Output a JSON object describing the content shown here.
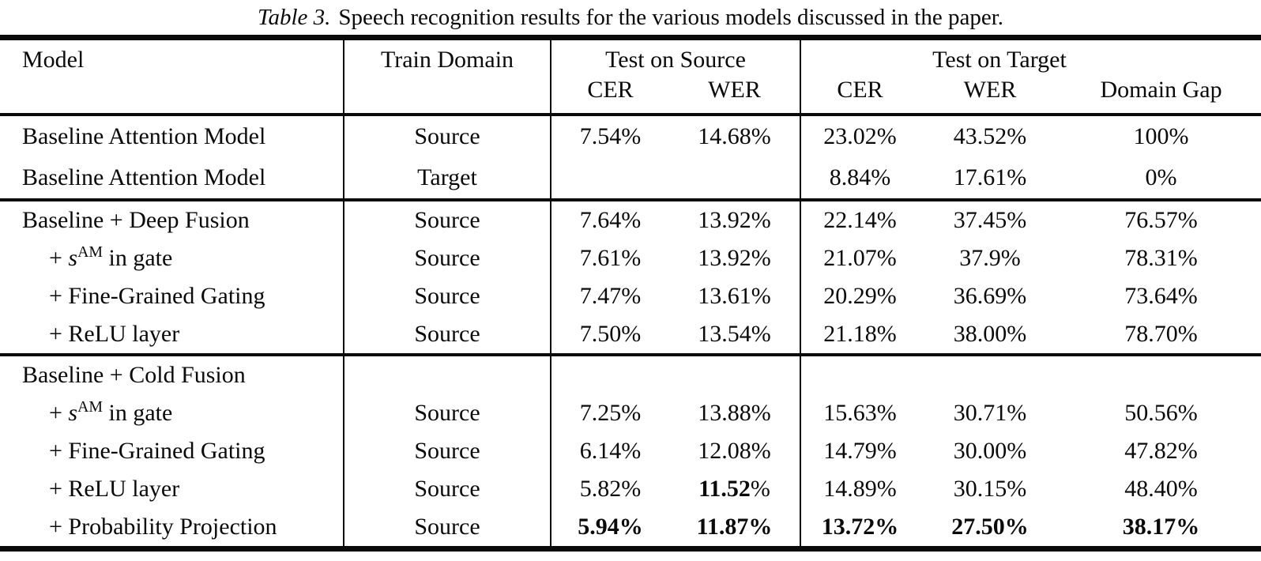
{
  "colors": {
    "ink": "#0a0a0a",
    "background": "#ffffff"
  },
  "caption": {
    "label": "Table 3.",
    "text": "Speech recognition results for the various models discussed in the paper."
  },
  "table": {
    "header": {
      "model": "Model",
      "train_domain": "Train Domain",
      "test_on_source": "Test on Source",
      "test_on_target": "Test on Target",
      "source_cer": "CER",
      "source_wer": "WER",
      "target_cer": "CER",
      "target_wer": "WER",
      "domain_gap": "Domain Gap"
    },
    "groups": [
      {
        "rows": [
          {
            "model": [
              {
                "t": "Baseline Attention Model"
              }
            ],
            "indent": false,
            "train": "Source",
            "cells": [
              [
                {
                  "t": "7.54%"
                }
              ],
              [
                {
                  "t": "14.68%"
                }
              ],
              [
                {
                  "t": "23.02%"
                }
              ],
              [
                {
                  "t": "43.52%"
                }
              ],
              [
                {
                  "t": "100%"
                }
              ]
            ]
          },
          {
            "model": [
              {
                "t": "Baseline Attention Model"
              }
            ],
            "indent": false,
            "train": "Target",
            "cells": [
              [],
              [],
              [
                {
                  "t": "8.84%"
                }
              ],
              [
                {
                  "t": "17.61%"
                }
              ],
              [
                {
                  "t": "0%"
                }
              ]
            ]
          }
        ]
      },
      {
        "rows": [
          {
            "model": [
              {
                "t": "Baseline + Deep Fusion"
              }
            ],
            "indent": false,
            "train": "Source",
            "cells": [
              [
                {
                  "t": "7.64%"
                }
              ],
              [
                {
                  "t": "13.92%"
                }
              ],
              [
                {
                  "t": "22.14%"
                }
              ],
              [
                {
                  "t": "37.45%"
                }
              ],
              [
                {
                  "t": "76.57%"
                }
              ]
            ]
          },
          {
            "model": [
              {
                "t": "+ "
              },
              {
                "t": "s",
                "style": "italic"
              },
              {
                "t": "AM",
                "style": "sup"
              },
              {
                "t": " in gate"
              }
            ],
            "indent": true,
            "train": "Source",
            "cells": [
              [
                {
                  "t": "7.61%"
                }
              ],
              [
                {
                  "t": "13.92%"
                }
              ],
              [
                {
                  "t": "21.07%"
                }
              ],
              [
                {
                  "t": "37.9%"
                }
              ],
              [
                {
                  "t": "78.31%"
                }
              ]
            ]
          },
          {
            "model": [
              {
                "t": "+ Fine-Grained Gating"
              }
            ],
            "indent": true,
            "train": "Source",
            "cells": [
              [
                {
                  "t": "7.47%"
                }
              ],
              [
                {
                  "t": "13.61%"
                }
              ],
              [
                {
                  "t": "20.29%"
                }
              ],
              [
                {
                  "t": "36.69%"
                }
              ],
              [
                {
                  "t": "73.64%"
                }
              ]
            ]
          },
          {
            "model": [
              {
                "t": "+ ReLU layer"
              }
            ],
            "indent": true,
            "train": "Source",
            "cells": [
              [
                {
                  "t": "7.50%"
                }
              ],
              [
                {
                  "t": "13.54%"
                }
              ],
              [
                {
                  "t": "21.18%"
                }
              ],
              [
                {
                  "t": "38.00%"
                }
              ],
              [
                {
                  "t": "78.70%"
                }
              ]
            ]
          }
        ]
      },
      {
        "rows": [
          {
            "model": [
              {
                "t": "Baseline + Cold Fusion"
              }
            ],
            "indent": false,
            "train": "",
            "cells": [
              [],
              [],
              [],
              [],
              []
            ]
          },
          {
            "model": [
              {
                "t": "+ "
              },
              {
                "t": "s",
                "style": "italic"
              },
              {
                "t": "AM",
                "style": "sup"
              },
              {
                "t": " in gate"
              }
            ],
            "indent": true,
            "train": "Source",
            "cells": [
              [
                {
                  "t": "7.25%"
                }
              ],
              [
                {
                  "t": "13.88%"
                }
              ],
              [
                {
                  "t": "15.63%"
                }
              ],
              [
                {
                  "t": "30.71%"
                }
              ],
              [
                {
                  "t": "50.56%"
                }
              ]
            ]
          },
          {
            "model": [
              {
                "t": "+ Fine-Grained Gating"
              }
            ],
            "indent": true,
            "train": "Source",
            "cells": [
              [
                {
                  "t": "6.14%"
                }
              ],
              [
                {
                  "t": "12.08%"
                }
              ],
              [
                {
                  "t": "14.79%"
                }
              ],
              [
                {
                  "t": "30.00%"
                }
              ],
              [
                {
                  "t": "47.82%"
                }
              ]
            ]
          },
          {
            "model": [
              {
                "t": "+ ReLU layer"
              }
            ],
            "indent": true,
            "train": "Source",
            "cells": [
              [
                {
                  "t": "5.82%"
                }
              ],
              [
                {
                  "t": "11.52",
                  "b": true
                },
                {
                  "t": "%"
                }
              ],
              [
                {
                  "t": "14.89%"
                }
              ],
              [
                {
                  "t": "30.15%"
                }
              ],
              [
                {
                  "t": "48.40%"
                }
              ]
            ]
          },
          {
            "model": [
              {
                "t": "+ Probability Projection"
              }
            ],
            "indent": true,
            "train": "Source",
            "cells": [
              [
                {
                  "t": "5.94%",
                  "b": true
                }
              ],
              [
                {
                  "t": "11.87%",
                  "b": true
                }
              ],
              [
                {
                  "t": "13.72%",
                  "b": true
                }
              ],
              [
                {
                  "t": "27.50%",
                  "b": true
                }
              ],
              [
                {
                  "t": "38.17%",
                  "b": true
                }
              ]
            ]
          }
        ]
      }
    ]
  }
}
